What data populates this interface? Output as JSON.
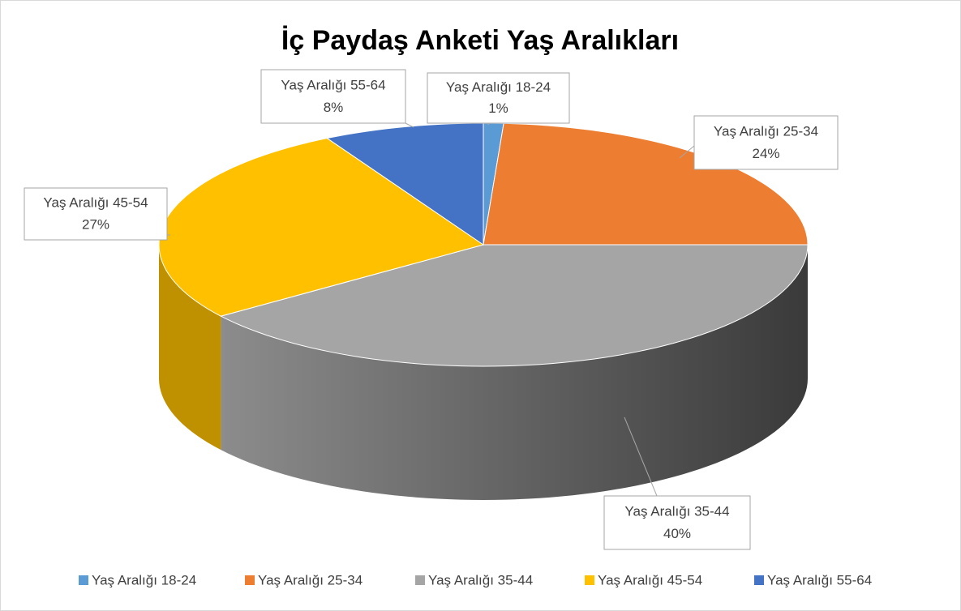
{
  "chart_data": {
    "type": "pie",
    "title": "İç Paydaş Anketi Yaş Aralıkları",
    "categories": [
      "Yaş Aralığı 18-24",
      "Yaş Aralığı 25-34",
      "Yaş Aralığı 35-44",
      "Yaş Aralığı 45-54",
      "Yaş Aralığı 55-64"
    ],
    "values": [
      1,
      24,
      40,
      27,
      8
    ],
    "value_labels": [
      "1%",
      "24%",
      "40%",
      "27%",
      "8%"
    ],
    "colors": [
      "#5b9bd5",
      "#ed7d31",
      "#a5a5a5",
      "#ffc000",
      "#4472c4"
    ],
    "legend": "bottom"
  }
}
